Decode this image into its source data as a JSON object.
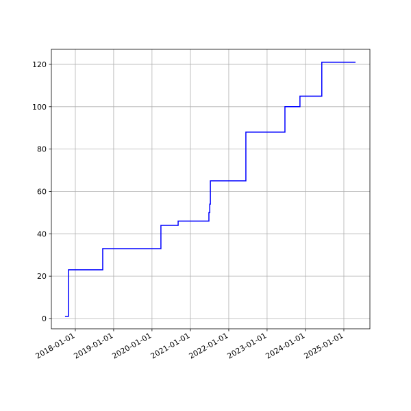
{
  "chart_data": {
    "type": "line",
    "x": [
      "2017-09-25",
      "2017-10-28",
      "2017-10-28",
      "2018-09-19",
      "2018-09-19",
      "2020-03-26",
      "2020-03-26",
      "2020-09-06",
      "2020-09-06",
      "2021-06-26",
      "2021-06-26",
      "2021-07-04",
      "2021-07-04",
      "2021-07-10",
      "2021-07-10",
      "2022-06-13",
      "2022-06-13",
      "2023-06-20",
      "2023-06-20",
      "2023-11-10",
      "2023-11-10",
      "2024-06-05",
      "2024-06-05",
      "2025-04-22"
    ],
    "series": [
      {
        "color": "#0000ff",
        "values": [
          1,
          1,
          23,
          23,
          33,
          33,
          44,
          44,
          46,
          46,
          50,
          50,
          54,
          54,
          65,
          65,
          88,
          88,
          100,
          100,
          105,
          105,
          121,
          121
        ]
      }
    ],
    "xlim": [
      "2017-05-18",
      "2025-09-06"
    ],
    "xticks": [
      "2018-01-01",
      "2019-01-01",
      "2020-01-01",
      "2021-01-01",
      "2022-01-01",
      "2023-01-01",
      "2024-01-01",
      "2025-01-01"
    ],
    "ylim": [
      -4.85,
      127.1
    ],
    "yticks": [
      0,
      20,
      40,
      60,
      80,
      100,
      120
    ],
    "grid": true
  }
}
